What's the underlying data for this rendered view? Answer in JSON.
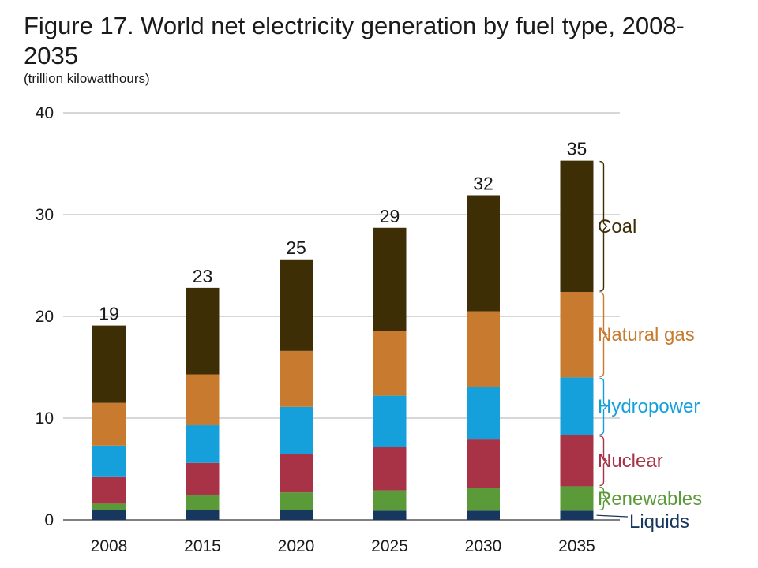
{
  "chart_data": {
    "type": "bar",
    "stacked": true,
    "title": "Figure 17. World net electricity generation by fuel type, 2008-2035",
    "subtitle": "(trillion kilowatthours)",
    "xlabel": "",
    "ylabel": "",
    "ylim": [
      0,
      40
    ],
    "yticks": [
      0,
      10,
      20,
      30,
      40
    ],
    "grid": true,
    "legend_placement": "right, beside final bar",
    "categories": [
      "2008",
      "2015",
      "2020",
      "2025",
      "2030",
      "2035"
    ],
    "totals": [
      "19",
      "23",
      "25",
      "29",
      "32",
      "35"
    ],
    "series": [
      {
        "name": "Liquids",
        "color": "#17375e",
        "values": [
          1.0,
          1.0,
          1.0,
          0.9,
          0.9,
          0.9
        ]
      },
      {
        "name": "Renewables",
        "color": "#5a9a38",
        "values": [
          0.6,
          1.4,
          1.7,
          2.0,
          2.2,
          2.4
        ]
      },
      {
        "name": "Nuclear",
        "color": "#a83246",
        "values": [
          2.6,
          3.2,
          3.8,
          4.3,
          4.8,
          5.0
        ]
      },
      {
        "name": "Hydropower",
        "color": "#16a0db",
        "values": [
          3.1,
          3.7,
          4.6,
          5.0,
          5.2,
          5.7
        ]
      },
      {
        "name": "Natural gas",
        "color": "#c87a2e",
        "values": [
          4.2,
          5.0,
          5.5,
          6.4,
          7.4,
          8.4
        ]
      },
      {
        "name": "Coal",
        "color": "#3d2e05",
        "values": [
          7.6,
          8.5,
          9.0,
          10.1,
          11.4,
          12.9
        ]
      }
    ],
    "legend_label_colors": {
      "Liquids": "#17375e",
      "Renewables": "#5a9a38",
      "Nuclear": "#a83246",
      "Hydropower": "#16a0db",
      "Natural gas": "#c87a2e",
      "Coal": "#3d2e05"
    }
  }
}
